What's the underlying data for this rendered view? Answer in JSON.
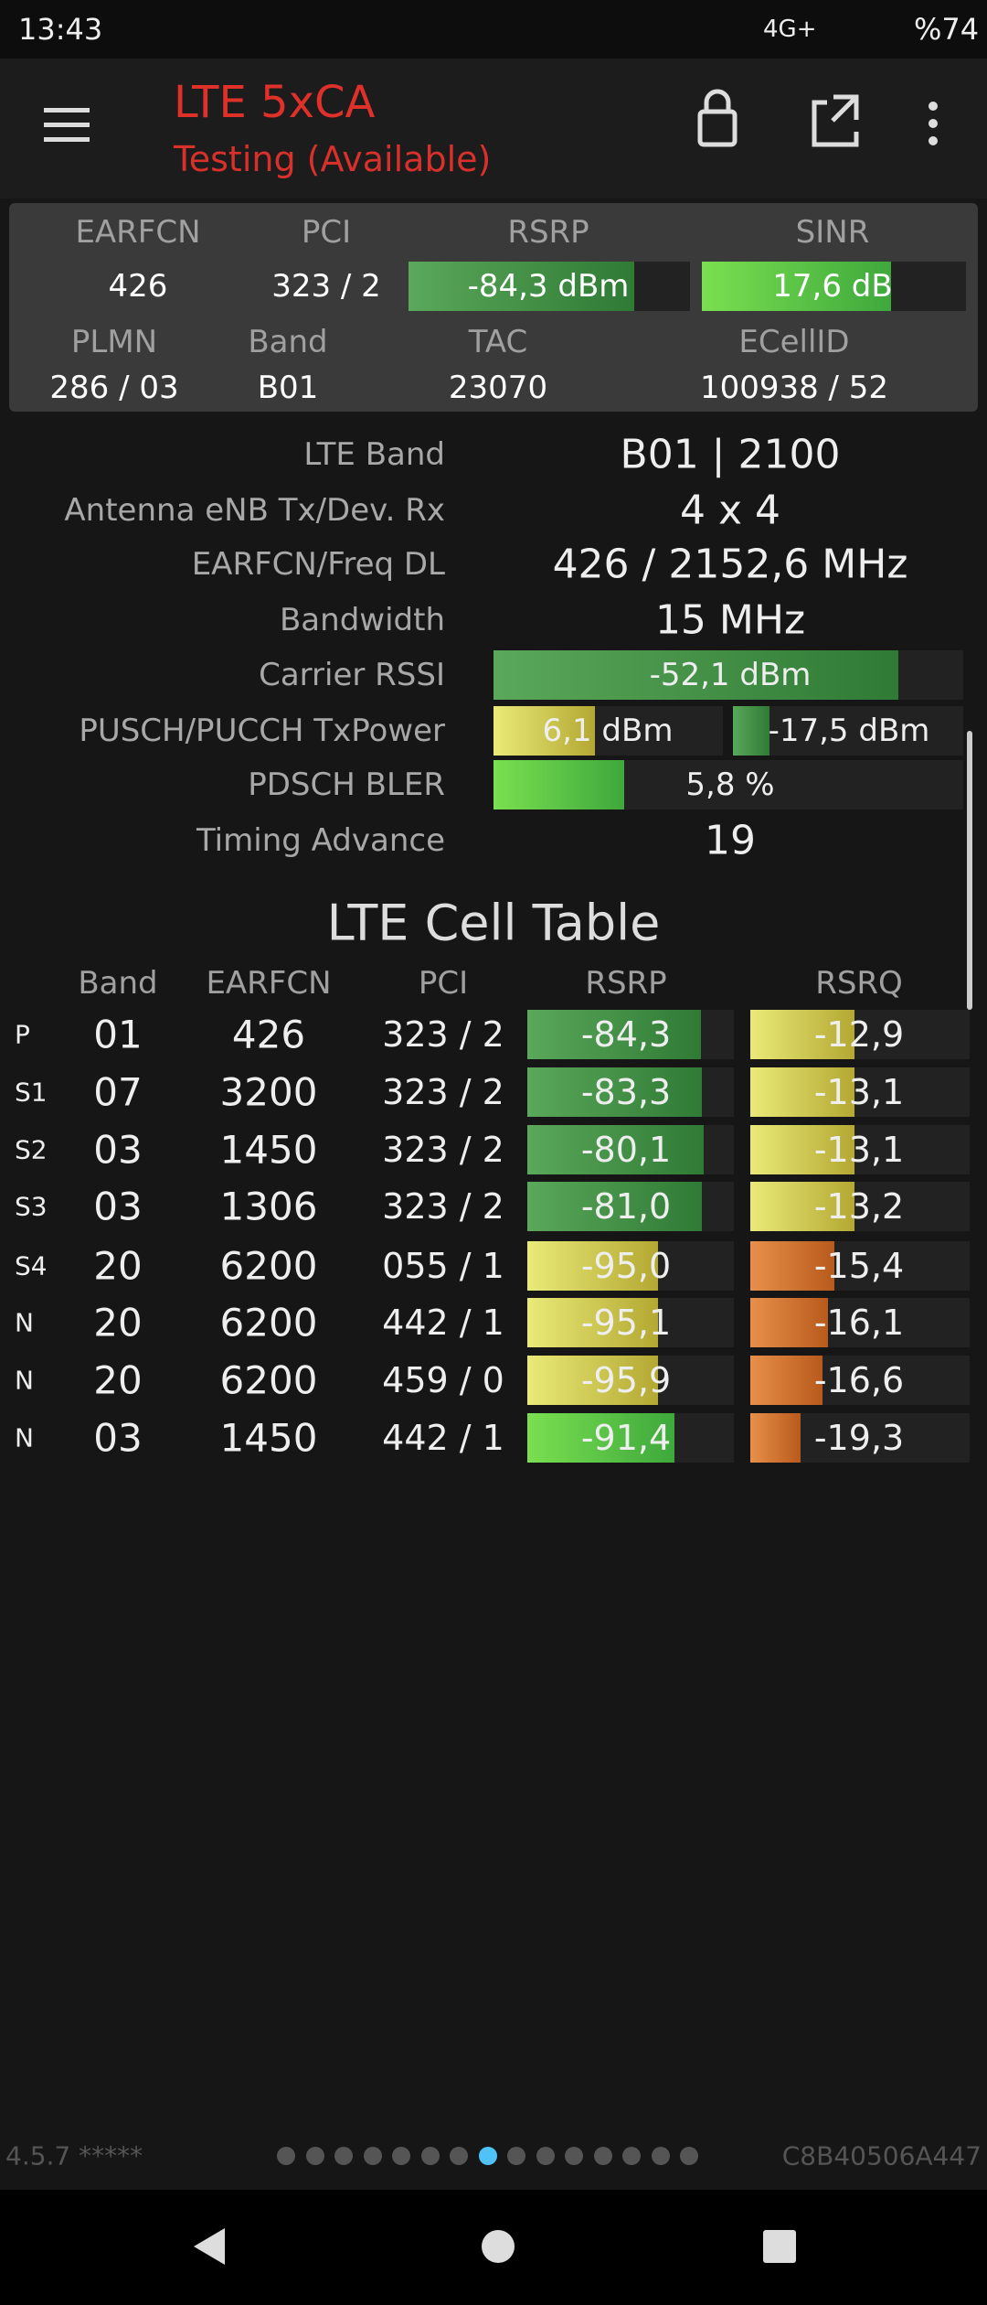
{
  "status_bar": {
    "time": "13:43",
    "network": "4G+",
    "battery": "%74"
  },
  "app_bar": {
    "title": "LTE 5xCA",
    "subtitle": "Testing (Available)"
  },
  "summary": {
    "headers1": [
      "EARFCN",
      "PCI",
      "RSRP",
      "SINR"
    ],
    "values1": [
      "426",
      "323 / 2",
      "-84,3 dBm",
      "17,6 dB"
    ],
    "headers2": [
      "PLMN",
      "Band",
      "TAC",
      "ECellID"
    ],
    "values2": [
      "286 / 03",
      "B01",
      "23070",
      "100938 / 52"
    ]
  },
  "info": {
    "rows": [
      {
        "label": "LTE Band",
        "values": [
          "B01 | 2100"
        ]
      },
      {
        "label": "Antenna eNB Tx/Dev. Rx",
        "values": [
          "4 x 4"
        ]
      },
      {
        "label": "EARFCN/Freq DL",
        "values": [
          "426 / 2152,6 MHz"
        ]
      },
      {
        "label": "Bandwidth",
        "values": [
          "15 MHz"
        ]
      },
      {
        "label": "Carrier RSSI",
        "values": [
          "-52,1 dBm"
        ]
      },
      {
        "label": "PUSCH/PUCCH TxPower",
        "values": [
          "6,1 dBm",
          "-17,5 dBm"
        ]
      },
      {
        "label": "PDSCH BLER",
        "values": [
          "5,8 %"
        ]
      },
      {
        "label": "Timing Advance",
        "values": [
          "19"
        ]
      }
    ]
  },
  "cell_table": {
    "title": "LTE Cell Table",
    "headers": [
      "Band",
      "EARFCN",
      "PCI",
      "RSRP",
      "RSRQ"
    ],
    "rows": [
      [
        "P",
        "01",
        "426",
        "323 / 2",
        "-84,3",
        "-12,9"
      ],
      [
        "S1",
        "07",
        "3200",
        "323 / 2",
        "-83,3",
        "-13,1"
      ],
      [
        "S2",
        "03",
        "1450",
        "323 / 2",
        "-80,1",
        "-13,1"
      ],
      [
        "S3",
        "03",
        "1306",
        "323 / 2",
        "-81,0",
        "-13,2"
      ],
      [
        "S4",
        "20",
        "6200",
        "055 / 1",
        "-95,0",
        "-15,4"
      ],
      [
        "N",
        "20",
        "6200",
        "442 / 1",
        "-95,1",
        "-16,1"
      ],
      [
        "N",
        "20",
        "6200",
        "459 / 0",
        "-95,9",
        "-16,6"
      ],
      [
        "N",
        "03",
        "1450",
        "442 / 1",
        "-91,4",
        "-19,3"
      ]
    ]
  },
  "footer": {
    "version": "4.5.7 *****",
    "device_id": "C8B40506A447"
  }
}
